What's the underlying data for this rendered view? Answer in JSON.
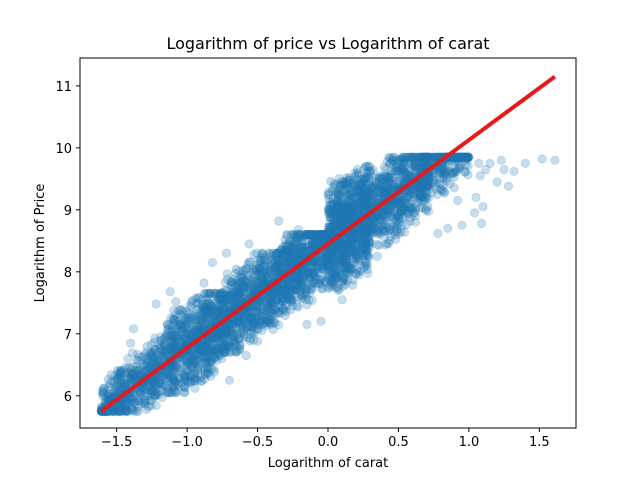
{
  "chart_data": {
    "type": "scatter",
    "title": "Logarithm of price vs Logarithm of carat",
    "xlabel": "Logarithm of carat",
    "ylabel": "Logarithm of Price",
    "xlim": [
      -1.76,
      1.76
    ],
    "ylim": [
      5.48,
      11.45
    ],
    "xticks": [
      -1.5,
      -1.0,
      -0.5,
      0.0,
      0.5,
      1.0,
      1.5
    ],
    "xtick_labels": [
      "−1.5",
      "−1.0",
      "−0.5",
      "0.0",
      "0.5",
      "1.0",
      "1.5"
    ],
    "yticks": [
      6,
      7,
      8,
      9,
      10,
      11
    ],
    "ytick_labels": [
      "6",
      "7",
      "8",
      "9",
      "10",
      "11"
    ],
    "grid": false,
    "scatter_color": "#1f77b4",
    "scatter_alpha": 0.25,
    "fit_color": "#e41a1c",
    "fit_line": {
      "x": [
        -1.61,
        1.61
      ],
      "y": [
        5.75,
        11.15
      ]
    },
    "clusters": [
      {
        "x": [
          -1.61,
          -1.15
        ],
        "y": [
          5.75,
          6.95
        ],
        "n": 500
      },
      {
        "x": [
          -1.15,
          -0.75
        ],
        "y": [
          6.05,
          7.65
        ],
        "n": 700
      },
      {
        "x": [
          -0.75,
          -0.35
        ],
        "y": [
          6.7,
          8.3
        ],
        "n": 700
      },
      {
        "x": [
          -0.35,
          0.0
        ],
        "y": [
          7.1,
          8.6
        ],
        "n": 600
      },
      {
        "x": [
          0.0,
          0.3
        ],
        "y": [
          7.7,
          9.7
        ],
        "n": 900
      },
      {
        "x": [
          0.3,
          0.72
        ],
        "y": [
          8.3,
          9.85
        ],
        "n": 600
      },
      {
        "x": [
          0.65,
          1.0
        ],
        "y": [
          8.6,
          9.85
        ],
        "n": 300
      }
    ],
    "outliers": [
      {
        "x": 1.07,
        "y": 9.75
      },
      {
        "x": 1.08,
        "y": 9.55
      },
      {
        "x": 1.1,
        "y": 9.05
      },
      {
        "x": 1.09,
        "y": 8.78
      },
      {
        "x": 1.12,
        "y": 9.65
      },
      {
        "x": 1.15,
        "y": 9.75
      },
      {
        "x": 1.2,
        "y": 9.45
      },
      {
        "x": 1.23,
        "y": 9.8
      },
      {
        "x": 1.25,
        "y": 9.65
      },
      {
        "x": 1.28,
        "y": 9.38
      },
      {
        "x": 1.32,
        "y": 9.62
      },
      {
        "x": 1.4,
        "y": 9.75
      },
      {
        "x": 1.52,
        "y": 9.82
      },
      {
        "x": 1.61,
        "y": 9.8
      },
      {
        "x": 1.05,
        "y": 9.2
      },
      {
        "x": 1.04,
        "y": 8.95
      },
      {
        "x": 0.95,
        "y": 8.75
      },
      {
        "x": 0.92,
        "y": 9.15
      },
      {
        "x": -1.38,
        "y": 7.08
      },
      {
        "x": -1.4,
        "y": 6.85
      },
      {
        "x": -1.42,
        "y": 6.6
      },
      {
        "x": -1.08,
        "y": 7.52
      },
      {
        "x": -1.12,
        "y": 7.68
      },
      {
        "x": -1.22,
        "y": 7.48
      },
      {
        "x": -0.88,
        "y": 7.82
      },
      {
        "x": -0.82,
        "y": 8.15
      },
      {
        "x": -0.72,
        "y": 8.3
      },
      {
        "x": -0.56,
        "y": 8.45
      },
      {
        "x": -0.49,
        "y": 8.05
      },
      {
        "x": -0.35,
        "y": 8.82
      },
      {
        "x": -0.21,
        "y": 8.68
      },
      {
        "x": -0.15,
        "y": 7.15
      },
      {
        "x": -0.05,
        "y": 7.2
      },
      {
        "x": -0.3,
        "y": 7.45
      },
      {
        "x": -0.5,
        "y": 6.88
      },
      {
        "x": -0.58,
        "y": 6.65
      },
      {
        "x": -0.7,
        "y": 6.25
      },
      {
        "x": -0.85,
        "y": 6.35
      },
      {
        "x": -1.35,
        "y": 5.82
      },
      {
        "x": -1.58,
        "y": 5.9
      },
      {
        "x": 0.1,
        "y": 7.55
      },
      {
        "x": 0.22,
        "y": 7.95
      },
      {
        "x": 0.35,
        "y": 8.25
      },
      {
        "x": 0.42,
        "y": 8.45
      },
      {
        "x": 0.48,
        "y": 8.6
      },
      {
        "x": 0.78,
        "y": 8.62
      },
      {
        "x": 0.85,
        "y": 8.7
      }
    ]
  }
}
